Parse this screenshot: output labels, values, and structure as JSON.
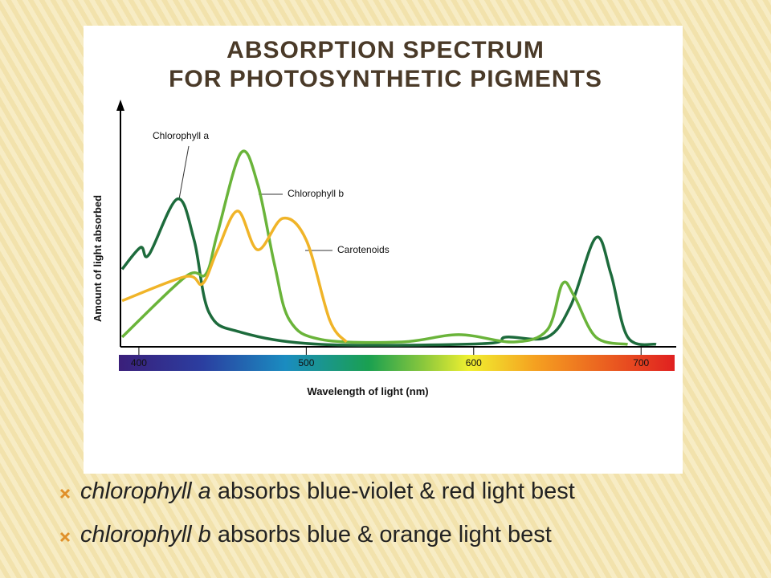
{
  "slide": {
    "title": [
      "ABSORPTION SPECTRUM",
      "FOR PHOTOSYNTHETIC PIGMENTS"
    ],
    "bullets": [
      {
        "em": "chlorophyll a",
        "text": "absorbs blue-violet & red light best"
      },
      {
        "em": "chlorophyll b",
        "text": "absorbs blue & orange light best"
      }
    ]
  },
  "chart_data": {
    "type": "line",
    "x_label": "Wavelength of light (nm)",
    "y_label": "Amount of light absorbed",
    "xlim": [
      389,
      721
    ],
    "xticks": [
      400,
      500,
      600,
      700
    ],
    "ylim": [
      0,
      100
    ],
    "series": [
      {
        "name": "Chlorophyll a",
        "color": "#1d6b3c",
        "x": [
          390,
          401,
          406,
          423,
          433,
          442,
          461,
          509,
          605,
          619.5,
          644,
          658,
          673,
          682,
          692,
          709
        ],
        "values": [
          32,
          41,
          38,
          61,
          44,
          14,
          6,
          1,
          1.3,
          4,
          4,
          17,
          45,
          30,
          4,
          1
        ]
      },
      {
        "name": "Chlorophyll b",
        "color": "#6ab43a",
        "x": [
          390,
          428,
          440,
          447,
          461,
          471,
          481,
          490,
          509,
          557,
          591,
          624,
          644,
          653,
          660,
          673,
          692
        ],
        "values": [
          4,
          29,
          30,
          47,
          80,
          67,
          34,
          11,
          3,
          2,
          5,
          2,
          7,
          26,
          21,
          4,
          1
        ]
      },
      {
        "name": "Carotenoids",
        "color": "#f0b428",
        "x": [
          390,
          428,
          438,
          447,
          459,
          471,
          486,
          500,
          514,
          524
        ],
        "values": [
          19,
          29,
          26,
          40,
          56,
          40,
          53,
          44,
          11,
          2
        ]
      }
    ]
  }
}
